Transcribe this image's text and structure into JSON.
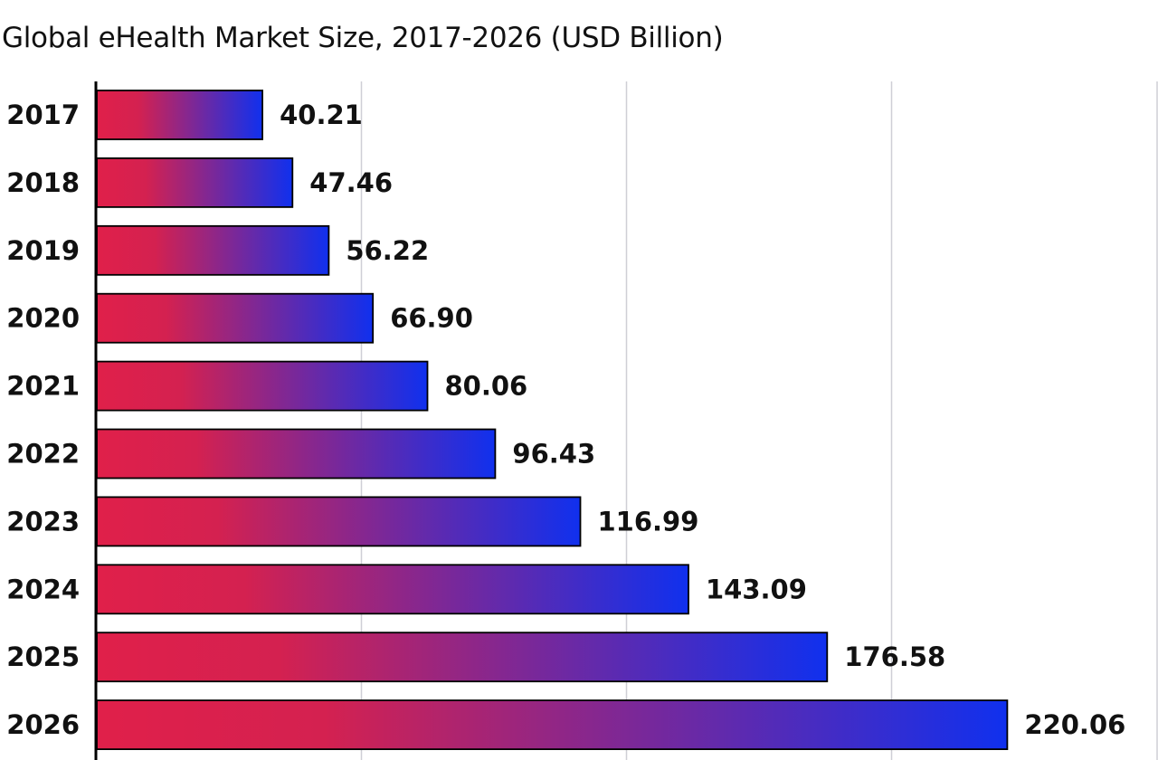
{
  "chart_data": {
    "type": "bar",
    "orientation": "horizontal",
    "title": "Global eHealth Market Size, 2017-2026 (USD Billion)",
    "xlabel": "",
    "ylabel": "",
    "categories": [
      "2017",
      "2018",
      "2019",
      "2020",
      "2021",
      "2022",
      "2023",
      "2024",
      "2025",
      "2026"
    ],
    "values": [
      40.21,
      47.46,
      56.22,
      66.9,
      80.06,
      96.43,
      116.99,
      143.09,
      176.58,
      220.06
    ],
    "value_labels": [
      "40.21",
      "47.46",
      "56.22",
      "66.90",
      "80.06",
      "96.43",
      "116.99",
      "143.09",
      "176.58",
      "220.06"
    ],
    "xlim": [
      0,
      250
    ],
    "grid": true,
    "legend": "none",
    "colors": {
      "bar_gradient_start": "#e0204a",
      "bar_gradient_mid": "#d42150",
      "bar_gradient_end": "#1030ee",
      "bar_outline": "#000000",
      "grid": "#cfcfd6",
      "axis": "#000000"
    }
  }
}
